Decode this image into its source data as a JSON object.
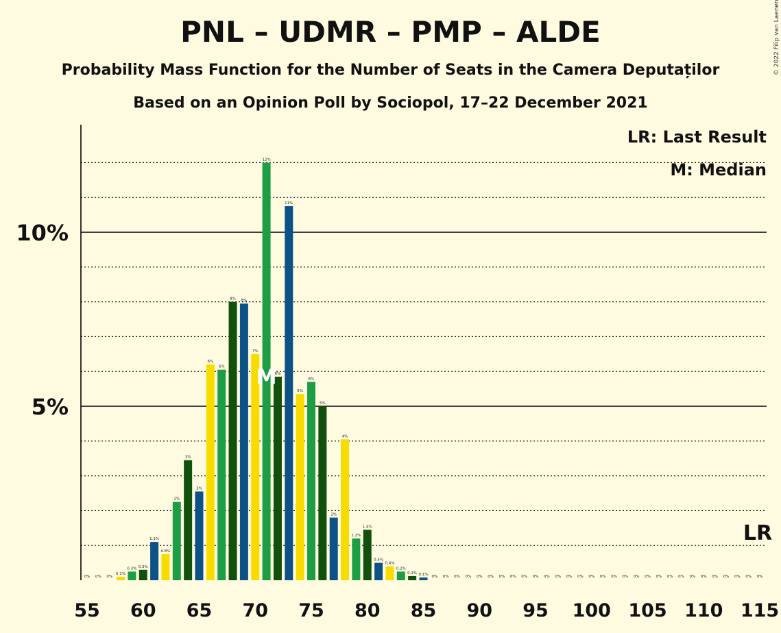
{
  "header": {
    "title": "PNL – UDMR – PMP – ALDE",
    "subtitle": "Probability Mass Function for the Number of Seats in the Camera Deputaților",
    "subtitle2": "Based on an Opinion Poll by Sociopol, 17–22 December 2021",
    "copyright": "© 2022 Filip van Laenen"
  },
  "legend": {
    "lr": "LR: Last Result",
    "median": "M: Median"
  },
  "colors": {
    "background": "#FFFBE1",
    "series": [
      "#1E9E44",
      "#12500E",
      "#0C5286",
      "#F8DC00"
    ]
  },
  "chart_data": {
    "type": "bar",
    "x": [
      55,
      56,
      57,
      58,
      59,
      60,
      61,
      62,
      63,
      64,
      65,
      66,
      67,
      68,
      69,
      70,
      71,
      72,
      73,
      74,
      75,
      76,
      77,
      78,
      79,
      80,
      81,
      82,
      83,
      84,
      85,
      86,
      87,
      88,
      89,
      90,
      91,
      92,
      93,
      94,
      95,
      96,
      97,
      98,
      99,
      100,
      101,
      102,
      103,
      104,
      105,
      106,
      107,
      108,
      109,
      110,
      111,
      112,
      113,
      114,
      115
    ],
    "values": [
      0,
      0,
      0,
      0.1,
      0.25,
      0.3,
      1.1,
      0.75,
      2.25,
      3.45,
      2.55,
      6.2,
      6.05,
      8.0,
      7.95,
      6.5,
      12.0,
      5.85,
      10.75,
      5.35,
      5.7,
      5.0,
      1.8,
      4.05,
      1.2,
      1.45,
      0.5,
      0.4,
      0.25,
      0.12,
      0.08,
      0,
      0,
      0,
      0,
      0,
      0,
      0,
      0,
      0,
      0,
      0,
      0,
      0,
      0,
      0,
      0,
      0,
      0,
      0,
      0,
      0,
      0,
      0,
      0,
      0,
      0,
      0,
      0,
      0,
      0
    ],
    "labels": [
      "0%",
      "0%",
      "0%",
      "0.1%",
      "0.3%",
      "0.3%",
      "1.1%",
      "0.8%",
      "2%",
      "3%",
      "3%",
      "6%",
      "6%",
      "8%",
      "8%",
      "7%",
      "12%",
      "6%",
      "11%",
      "5%",
      "6%",
      "5%",
      "2%",
      "4%",
      "1.2%",
      "1.4%",
      "0.5%",
      "0.4%",
      "0.2%",
      "0.1%",
      "0.1%",
      "0%",
      "0%",
      "0%",
      "0%",
      "0%",
      "0%",
      "0%",
      "0%",
      "0%",
      "0%",
      "0%",
      "0%",
      "0%",
      "0%",
      "0%",
      "0%",
      "0%",
      "0%",
      "0%",
      "0%",
      "0%",
      "0%",
      "0%",
      "0%",
      "0%",
      "0%",
      "0%",
      "0%",
      "0%",
      "0%"
    ],
    "x_ticks": [
      55,
      60,
      65,
      70,
      75,
      80,
      85,
      90,
      95,
      100,
      105,
      110,
      115
    ],
    "y_ticks": [
      {
        "value": 5,
        "label": "5%"
      },
      {
        "value": 10,
        "label": "10%"
      }
    ],
    "ylim": [
      0,
      13
    ],
    "median_seat": 71,
    "median_label": "M",
    "last_result_seat": 115,
    "last_result_label": "LR"
  }
}
